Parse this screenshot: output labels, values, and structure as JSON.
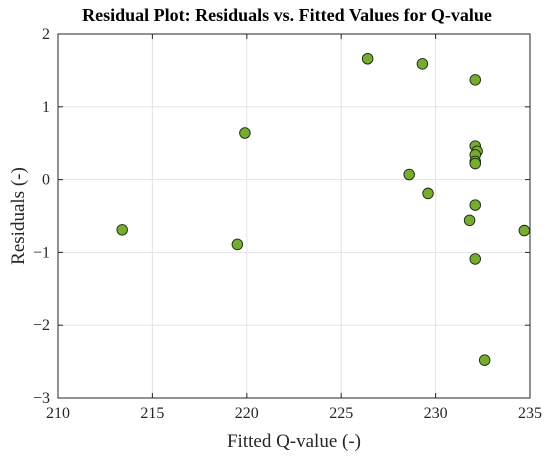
{
  "chart_data": {
    "type": "scatter",
    "title": "Residual Plot: Residuals vs. Fitted Values for Q-value",
    "xlabel": "Fitted Q-value (-)",
    "ylabel": "Residuals (-)",
    "xlim": [
      210,
      235
    ],
    "ylim": [
      -3,
      2
    ],
    "xticks": [
      210,
      215,
      220,
      225,
      230,
      235
    ],
    "yticks": [
      -3,
      -2,
      -1,
      0,
      1,
      2
    ],
    "xtick_labels": [
      "210",
      "215",
      "220",
      "225",
      "230",
      "235"
    ],
    "ytick_labels": [
      "−3",
      "−2",
      "−1",
      "0",
      "1",
      "2"
    ],
    "grid": true,
    "marker_color": "#77ac30",
    "points": [
      {
        "x": 213.4,
        "y": -0.69
      },
      {
        "x": 219.5,
        "y": -0.89
      },
      {
        "x": 219.9,
        "y": 0.64
      },
      {
        "x": 226.4,
        "y": 1.66
      },
      {
        "x": 228.6,
        "y": 0.07
      },
      {
        "x": 229.3,
        "y": 1.59
      },
      {
        "x": 229.6,
        "y": -0.19
      },
      {
        "x": 231.8,
        "y": -0.56
      },
      {
        "x": 232.1,
        "y": 1.37
      },
      {
        "x": 232.1,
        "y": 0.46
      },
      {
        "x": 232.2,
        "y": 0.39
      },
      {
        "x": 232.1,
        "y": 0.34
      },
      {
        "x": 232.1,
        "y": 0.25
      },
      {
        "x": 232.1,
        "y": 0.22
      },
      {
        "x": 232.1,
        "y": -0.35
      },
      {
        "x": 232.1,
        "y": -1.09
      },
      {
        "x": 232.6,
        "y": -2.48
      },
      {
        "x": 234.7,
        "y": -0.7
      }
    ]
  }
}
